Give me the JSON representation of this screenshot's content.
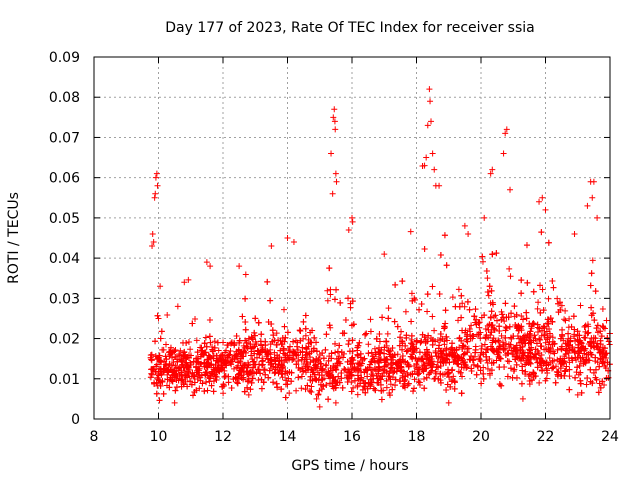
{
  "chart_data": {
    "type": "scatter",
    "title": "Day 177 of 2023, Rate Of TEC Index for receiver ssia",
    "xlabel": "GPS time / hours",
    "ylabel": "ROTI / TECUs",
    "xlim": [
      8,
      24
    ],
    "ylim": [
      0,
      0.09
    ],
    "xticks": [
      "8",
      "10",
      "12",
      "14",
      "16",
      "18",
      "20",
      "22",
      "24"
    ],
    "yticks": [
      "0",
      "0.01",
      "0.02",
      "0.03",
      "0.04",
      "0.05",
      "0.06",
      "0.07",
      "0.08",
      "0.09"
    ],
    "grid": true,
    "marker": "+",
    "color": "#ff0000",
    "x_start": 9.75,
    "x_end": 24.0,
    "envelope": [
      {
        "x": 9.75,
        "median": 0.013,
        "spread": 0.006,
        "peak": 0.046
      },
      {
        "x": 9.9,
        "median": 0.013,
        "spread": 0.007,
        "peak": 0.062
      },
      {
        "x": 10.0,
        "median": 0.012,
        "spread": 0.007,
        "peak": 0.035
      },
      {
        "x": 10.5,
        "median": 0.012,
        "spread": 0.007,
        "peak": 0.025
      },
      {
        "x": 11.0,
        "median": 0.013,
        "spread": 0.008,
        "peak": 0.037
      },
      {
        "x": 11.5,
        "median": 0.013,
        "spread": 0.008,
        "peak": 0.039
      },
      {
        "x": 12.0,
        "median": 0.013,
        "spread": 0.008,
        "peak": 0.031
      },
      {
        "x": 12.5,
        "median": 0.014,
        "spread": 0.009,
        "peak": 0.038
      },
      {
        "x": 13.0,
        "median": 0.014,
        "spread": 0.009,
        "peak": 0.036
      },
      {
        "x": 13.5,
        "median": 0.015,
        "spread": 0.009,
        "peak": 0.043
      },
      {
        "x": 14.0,
        "median": 0.014,
        "spread": 0.009,
        "peak": 0.045
      },
      {
        "x": 14.5,
        "median": 0.014,
        "spread": 0.009,
        "peak": 0.04
      },
      {
        "x": 15.0,
        "median": 0.012,
        "spread": 0.008,
        "peak": 0.035
      },
      {
        "x": 15.4,
        "median": 0.013,
        "spread": 0.008,
        "peak": 0.077
      },
      {
        "x": 15.7,
        "median": 0.013,
        "spread": 0.008,
        "peak": 0.043
      },
      {
        "x": 16.0,
        "median": 0.012,
        "spread": 0.008,
        "peak": 0.05
      },
      {
        "x": 16.5,
        "median": 0.012,
        "spread": 0.007,
        "peak": 0.035
      },
      {
        "x": 17.0,
        "median": 0.013,
        "spread": 0.008,
        "peak": 0.041
      },
      {
        "x": 17.5,
        "median": 0.013,
        "spread": 0.008,
        "peak": 0.037
      },
      {
        "x": 18.0,
        "median": 0.014,
        "spread": 0.008,
        "peak": 0.053
      },
      {
        "x": 18.4,
        "median": 0.015,
        "spread": 0.009,
        "peak": 0.082
      },
      {
        "x": 18.8,
        "median": 0.015,
        "spread": 0.009,
        "peak": 0.059
      },
      {
        "x": 19.2,
        "median": 0.015,
        "spread": 0.01,
        "peak": 0.048
      },
      {
        "x": 19.6,
        "median": 0.016,
        "spread": 0.01,
        "peak": 0.045
      },
      {
        "x": 20.0,
        "median": 0.018,
        "spread": 0.011,
        "peak": 0.058
      },
      {
        "x": 20.4,
        "median": 0.019,
        "spread": 0.011,
        "peak": 0.062
      },
      {
        "x": 20.8,
        "median": 0.019,
        "spread": 0.012,
        "peak": 0.072
      },
      {
        "x": 21.2,
        "median": 0.018,
        "spread": 0.011,
        "peak": 0.055
      },
      {
        "x": 21.6,
        "median": 0.017,
        "spread": 0.011,
        "peak": 0.048
      },
      {
        "x": 22.0,
        "median": 0.017,
        "spread": 0.011,
        "peak": 0.055
      },
      {
        "x": 22.4,
        "median": 0.016,
        "spread": 0.01,
        "peak": 0.045
      },
      {
        "x": 22.8,
        "median": 0.016,
        "spread": 0.01,
        "peak": 0.041
      },
      {
        "x": 23.2,
        "median": 0.016,
        "spread": 0.011,
        "peak": 0.048
      },
      {
        "x": 23.5,
        "median": 0.017,
        "spread": 0.011,
        "peak": 0.059
      },
      {
        "x": 23.8,
        "median": 0.016,
        "spread": 0.011,
        "peak": 0.045
      },
      {
        "x": 24.0,
        "median": 0.015,
        "spread": 0.01,
        "peak": 0.037
      }
    ],
    "points": [
      [
        9.8,
        0.043
      ],
      [
        9.82,
        0.046
      ],
      [
        9.85,
        0.044
      ],
      [
        9.88,
        0.055
      ],
      [
        9.9,
        0.056
      ],
      [
        9.92,
        0.06
      ],
      [
        9.95,
        0.061
      ],
      [
        9.97,
        0.058
      ],
      [
        10.0,
        0.025
      ],
      [
        10.05,
        0.033
      ],
      [
        15.35,
        0.066
      ],
      [
        15.42,
        0.075
      ],
      [
        15.45,
        0.077
      ],
      [
        15.48,
        0.072
      ],
      [
        15.5,
        0.061
      ],
      [
        15.52,
        0.059
      ],
      [
        15.4,
        0.056
      ],
      [
        15.47,
        0.074
      ],
      [
        18.3,
        0.065
      ],
      [
        18.35,
        0.073
      ],
      [
        18.4,
        0.082
      ],
      [
        18.42,
        0.079
      ],
      [
        18.45,
        0.074
      ],
      [
        18.5,
        0.066
      ],
      [
        18.55,
        0.062
      ],
      [
        18.25,
        0.063
      ],
      [
        18.6,
        0.058
      ],
      [
        18.7,
        0.058
      ],
      [
        20.3,
        0.061
      ],
      [
        20.35,
        0.062
      ],
      [
        20.75,
        0.071
      ],
      [
        20.8,
        0.072
      ],
      [
        20.7,
        0.066
      ],
      [
        20.9,
        0.057
      ],
      [
        21.8,
        0.054
      ],
      [
        21.9,
        0.055
      ],
      [
        22.0,
        0.052
      ],
      [
        23.4,
        0.059
      ],
      [
        23.5,
        0.059
      ],
      [
        23.45,
        0.055
      ],
      [
        23.3,
        0.053
      ],
      [
        23.6,
        0.05
      ],
      [
        16.0,
        0.05
      ],
      [
        16.02,
        0.049
      ],
      [
        15.9,
        0.047
      ],
      [
        13.5,
        0.043
      ],
      [
        14.0,
        0.045
      ],
      [
        14.2,
        0.044
      ],
      [
        17.0,
        0.041
      ],
      [
        19.5,
        0.048
      ],
      [
        19.6,
        0.046
      ],
      [
        20.1,
        0.05
      ],
      [
        22.9,
        0.046
      ],
      [
        10.6,
        0.028
      ],
      [
        10.8,
        0.034
      ],
      [
        11.5,
        0.039
      ],
      [
        11.6,
        0.038
      ],
      [
        12.5,
        0.038
      ],
      [
        15.0,
        0.003
      ],
      [
        15.5,
        0.004
      ],
      [
        10.5,
        0.004
      ],
      [
        19.0,
        0.004
      ],
      [
        21.3,
        0.005
      ],
      [
        23.0,
        0.006
      ],
      [
        14.9,
        0.005
      ],
      [
        12.8,
        0.006
      ]
    ]
  }
}
